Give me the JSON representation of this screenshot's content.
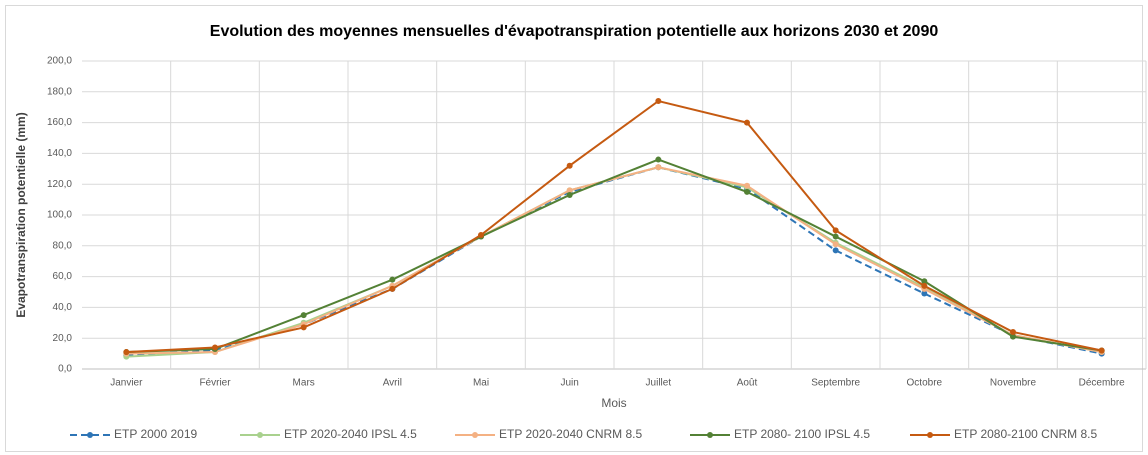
{
  "chart_data": {
    "type": "line",
    "title": "Evolution des moyennes mensuelles d'évapotranspiration potentielle aux horizons 2030 et 2090",
    "x_label": "Mois",
    "y_label": "Evapotranspiration potentielle (mm)",
    "categories": [
      "Janvier",
      "Février",
      "Mars",
      "Avril",
      "Mai",
      "Juin",
      "Juillet",
      "Août",
      "Septembre",
      "Octobre",
      "Novembre",
      "Décembre"
    ],
    "series": [
      {
        "name": "ETP 2000 2019",
        "color": "#2e75b6",
        "dash": true,
        "values": [
          9,
          12,
          29,
          52,
          86,
          115,
          131,
          117,
          77,
          49,
          22,
          10
        ]
      },
      {
        "name": "ETP 2020-2040 IPSL 4.5",
        "color": "#a9d18e",
        "dash": false,
        "values": [
          8,
          11,
          30,
          54,
          86,
          116,
          131,
          118,
          82,
          53,
          22,
          11
        ]
      },
      {
        "name": "ETP 2020-2040 CNRM 8.5",
        "color": "#f4b183",
        "dash": false,
        "values": [
          10,
          11,
          29,
          54,
          86,
          116,
          131,
          119,
          81,
          52,
          22,
          11
        ]
      },
      {
        "name": "ETP 2080- 2100 IPSL 4.5",
        "color": "#538135",
        "dash": false,
        "values": [
          11,
          13,
          35,
          58,
          86,
          113,
          136,
          115,
          86,
          57,
          21,
          12
        ]
      },
      {
        "name": "ETP 2080-2100 CNRM 8.5",
        "color": "#c55a11",
        "dash": false,
        "values": [
          11,
          14,
          27,
          52,
          87,
          132,
          174,
          160,
          90,
          54,
          24,
          12
        ]
      }
    ],
    "ylim": [
      0,
      200
    ],
    "yticks": [
      {
        "value": 0,
        "label": "0,0"
      },
      {
        "value": 20,
        "label": "20,0"
      },
      {
        "value": 40,
        "label": "40,0"
      },
      {
        "value": 60,
        "label": "60,0"
      },
      {
        "value": 80,
        "label": "80,0"
      },
      {
        "value": 100,
        "label": "100,0"
      },
      {
        "value": 120,
        "label": "120,0"
      },
      {
        "value": 140,
        "label": "140,0"
      },
      {
        "value": 160,
        "label": "160,0"
      },
      {
        "value": 180,
        "label": "180,0"
      },
      {
        "value": 200,
        "label": "200,0"
      }
    ],
    "grid": true,
    "legend": "bottom"
  }
}
